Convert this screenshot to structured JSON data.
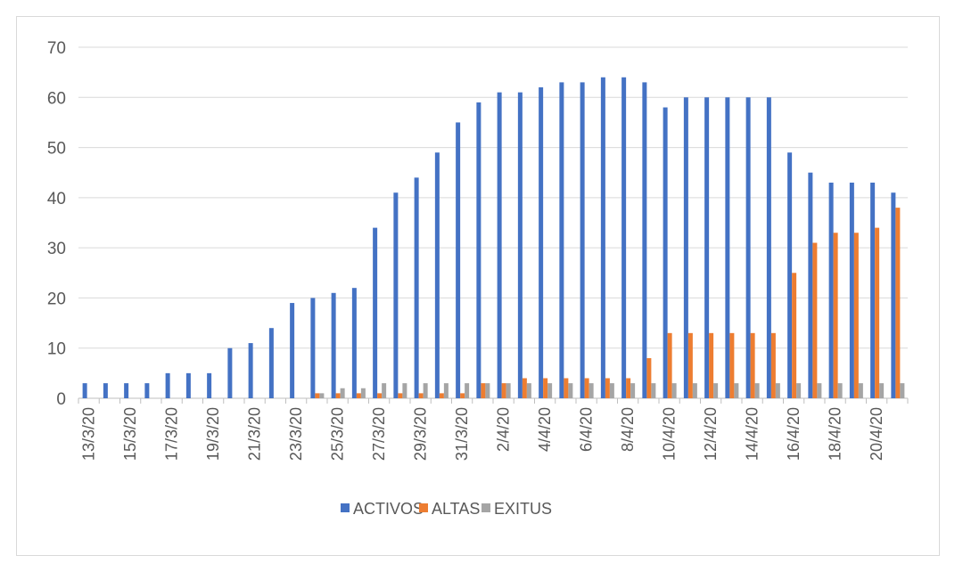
{
  "chart_data": {
    "type": "bar",
    "title": "",
    "xlabel": "",
    "ylabel": "",
    "ylim": [
      0,
      70
    ],
    "yticks": [
      0,
      10,
      20,
      30,
      40,
      50,
      60,
      70
    ],
    "grid": true,
    "legend_position": "bottom",
    "categories": [
      "13/3/20",
      "14/3/20",
      "15/3/20",
      "16/3/20",
      "17/3/20",
      "18/3/20",
      "19/3/20",
      "20/3/20",
      "21/3/20",
      "22/3/20",
      "23/3/20",
      "24/3/20",
      "25/3/20",
      "26/3/20",
      "27/3/20",
      "28/3/20",
      "29/3/20",
      "30/3/20",
      "31/3/20",
      "1/4/20",
      "2/4/20",
      "3/4/20",
      "4/4/20",
      "5/4/20",
      "6/4/20",
      "7/4/20",
      "8/4/20",
      "9/4/20",
      "10/4/20",
      "11/4/20",
      "12/4/20",
      "13/4/20",
      "14/4/20",
      "15/4/20",
      "16/4/20",
      "17/4/20",
      "18/4/20",
      "19/4/20",
      "20/4/20",
      "21/4/20"
    ],
    "tick_labels_shown": [
      "13/3/20",
      "15/3/20",
      "17/3/20",
      "19/3/20",
      "21/3/20",
      "23/3/20",
      "25/3/20",
      "27/3/20",
      "29/3/20",
      "31/3/20",
      "2/4/20",
      "4/4/20",
      "6/4/20",
      "8/4/20",
      "10/4/20",
      "12/4/20",
      "14/4/20",
      "16/4/20",
      "18/4/20",
      "20/4/20"
    ],
    "series": [
      {
        "name": "ACTIVOS",
        "color": "#4472c4",
        "values": [
          3,
          3,
          3,
          3,
          5,
          5,
          5,
          10,
          11,
          14,
          19,
          20,
          21,
          22,
          34,
          41,
          44,
          49,
          55,
          59,
          61,
          61,
          62,
          63,
          63,
          64,
          64,
          63,
          58,
          60,
          60,
          60,
          60,
          60,
          49,
          45,
          43,
          43,
          43,
          41
        ]
      },
      {
        "name": "ALTAS",
        "color": "#ed7d31",
        "values": [
          0,
          0,
          0,
          0,
          0,
          0,
          0,
          0,
          0,
          0,
          0,
          1,
          1,
          1,
          1,
          1,
          1,
          1,
          1,
          3,
          3,
          4,
          4,
          4,
          4,
          4,
          4,
          8,
          13,
          13,
          13,
          13,
          13,
          13,
          25,
          31,
          33,
          33,
          34,
          38
        ]
      },
      {
        "name": "EXITUS",
        "color": "#a5a5a5",
        "values": [
          0,
          0,
          0,
          0,
          0,
          0,
          0,
          0,
          0,
          0,
          0,
          1,
          2,
          2,
          3,
          3,
          3,
          3,
          3,
          3,
          3,
          3,
          3,
          3,
          3,
          3,
          3,
          3,
          3,
          3,
          3,
          3,
          3,
          3,
          3,
          3,
          3,
          3,
          3,
          3
        ]
      }
    ]
  }
}
